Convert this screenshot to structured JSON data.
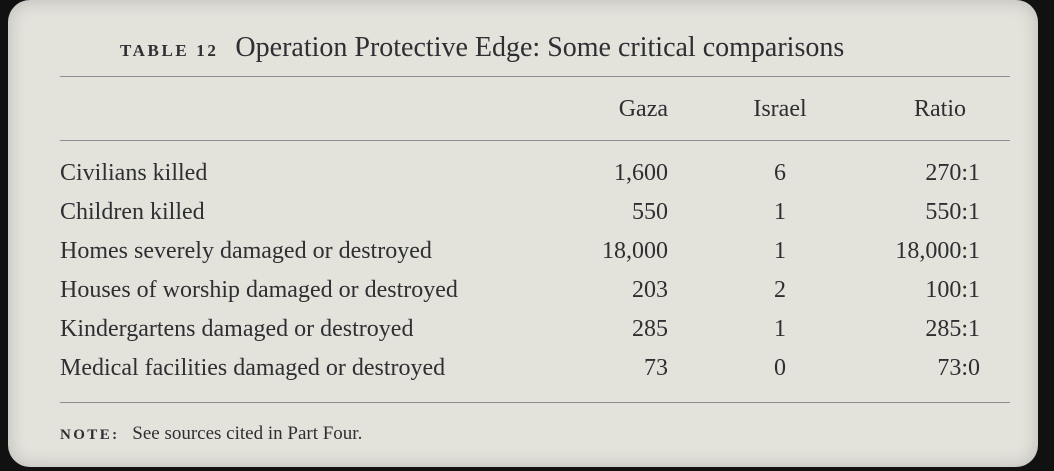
{
  "table": {
    "label": "TABLE 12",
    "title": "Operation Protective Edge: Some critical comparisons",
    "columns": [
      "Gaza",
      "Israel",
      "Ratio"
    ],
    "rows": [
      {
        "label": "Civilians killed",
        "gaza": "1,600",
        "israel": "6",
        "ratio": "270:1"
      },
      {
        "label": "Children killed",
        "gaza": "550",
        "israel": "1",
        "ratio": "550:1"
      },
      {
        "label": "Homes severely damaged or destroyed",
        "gaza": "18,000",
        "israel": "1",
        "ratio": "18,000:1"
      },
      {
        "label": "Houses of worship damaged or destroyed",
        "gaza": "203",
        "israel": "2",
        "ratio": "100:1"
      },
      {
        "label": "Kindergartens damaged or destroyed",
        "gaza": "285",
        "israel": "1",
        "ratio": "285:1"
      },
      {
        "label": "Medical facilities damaged or destroyed",
        "gaza": "73",
        "israel": "0",
        "ratio": "73:0"
      }
    ],
    "note_label": "NOTE:",
    "note_text": "See sources cited in Part Four."
  }
}
